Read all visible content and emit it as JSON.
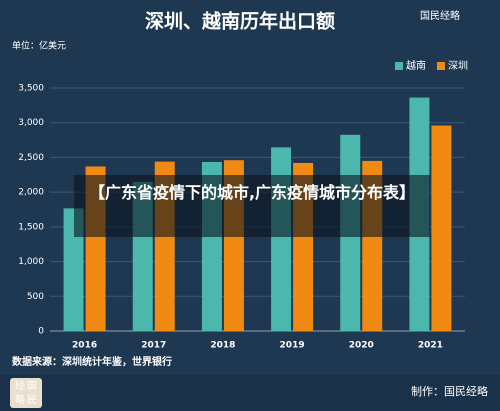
{
  "chart_data": {
    "type": "bar",
    "title": "深圳、越南历年出口额",
    "unit": "单位：亿美元",
    "categories": [
      "2016",
      "2017",
      "2018",
      "2019",
      "2020",
      "2021"
    ],
    "series": [
      {
        "name": "越南",
        "color": "#4cb8ad",
        "values": [
          1766,
          2148,
          2435,
          2645,
          2826,
          3362
        ]
      },
      {
        "name": "深圳",
        "color": "#f08a12",
        "values": [
          2370,
          2440,
          2460,
          2420,
          2450,
          2960
        ]
      }
    ],
    "ylim": [
      0,
      3500
    ],
    "yticks": [
      0,
      500,
      {
        "value": 1000,
        "label": "1,000"
      },
      {
        "value": 1500,
        "label": "1,500"
      },
      {
        "value": 2000,
        "label": "2,000"
      },
      {
        "value": 2500,
        "label": "2,500"
      },
      {
        "value": 3000,
        "label": "3,000"
      },
      {
        "value": 3500,
        "label": "3,500"
      }
    ],
    "grid": true,
    "legend": "top-right",
    "source": "数据来源：深圳统计年鉴，世界银行"
  },
  "banner": "【广东省疫情下的城市,广东疫情城市分布表】",
  "logo": "国民经略",
  "credit": "制作：国民经略",
  "badge": [
    "经",
    "国",
    "略",
    "民"
  ]
}
